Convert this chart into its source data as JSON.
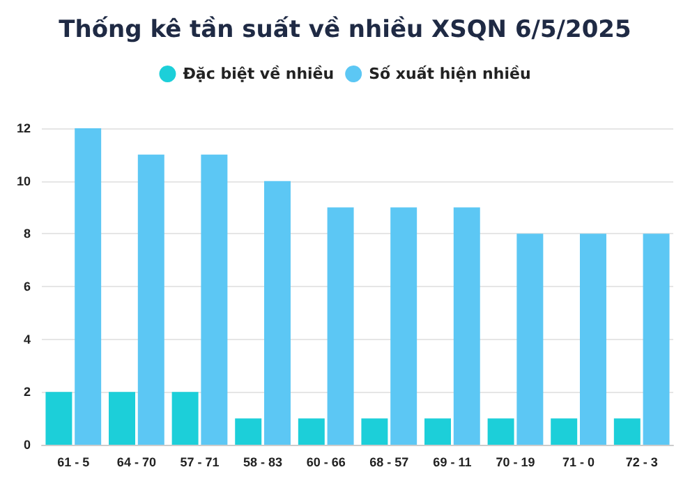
{
  "chart_data": {
    "type": "bar",
    "title": "Thống kê tần suất về nhiều XSQN 6/5/2025",
    "categories": [
      "61 - 5",
      "64 - 70",
      "57 - 71",
      "58 - 83",
      "60 - 66",
      "68 - 57",
      "69 - 11",
      "70 - 19",
      "71 - 0",
      "72 - 3"
    ],
    "series": [
      {
        "name": "Đặc biệt về nhiều",
        "color": "#1ccfd9",
        "values": [
          2,
          2,
          2,
          1,
          1,
          1,
          1,
          1,
          1,
          1
        ]
      },
      {
        "name": "Số xuất hiện nhiều",
        "color": "#5cc7f4",
        "values": [
          12,
          11,
          11,
          10,
          9,
          9,
          9,
          8,
          8,
          8
        ]
      }
    ],
    "ylim": [
      0,
      12
    ],
    "yticks": [
      0,
      2,
      4,
      6,
      8,
      10,
      12
    ],
    "grid": "y",
    "legend": "top"
  }
}
